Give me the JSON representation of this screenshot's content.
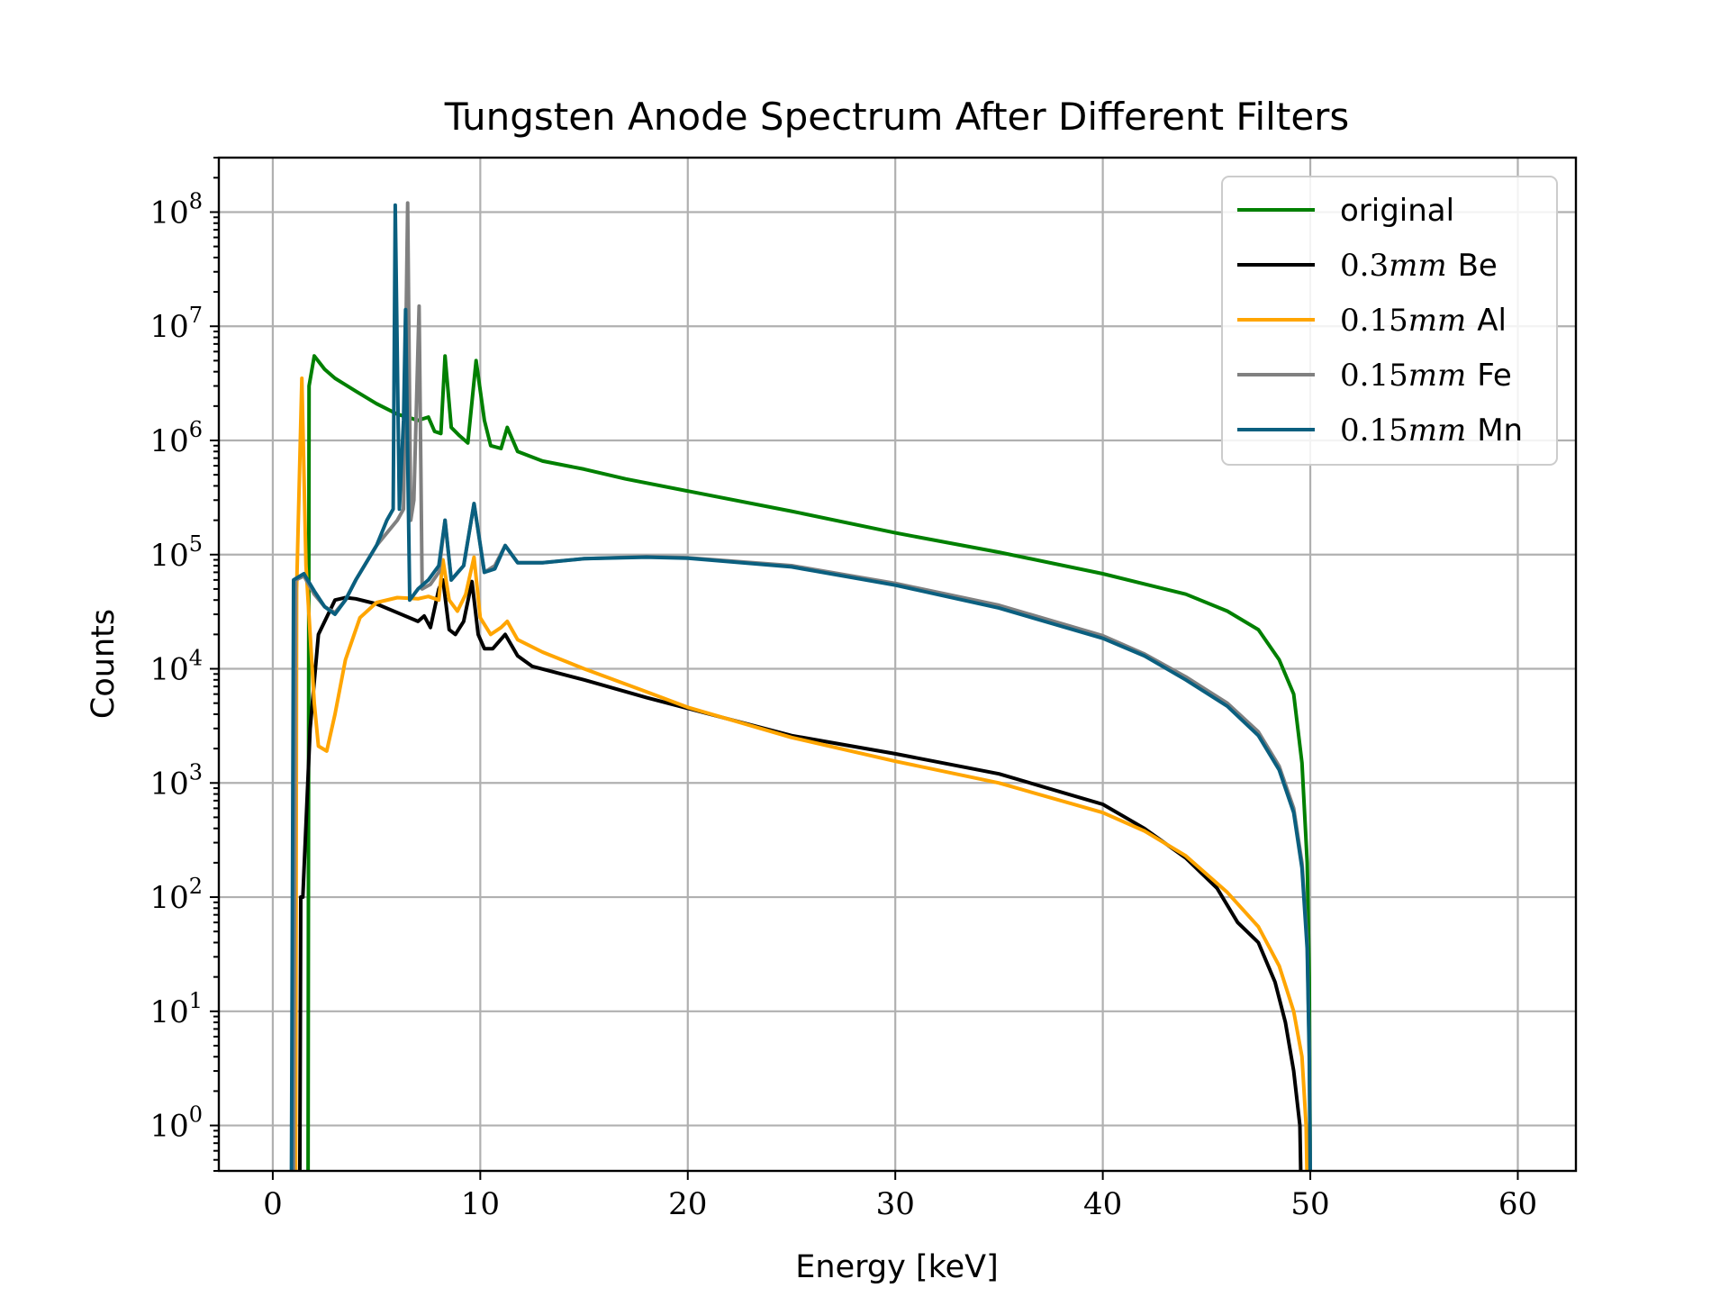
{
  "chart_data": {
    "type": "line",
    "title": "Tungsten Anode Spectrum After Different Filters",
    "xlabel": "Energy [keV]",
    "ylabel": "Counts",
    "x_scale": "linear",
    "y_scale": "log",
    "xlim": [
      -2.6,
      62.8
    ],
    "ylim": [
      0.4,
      300000000.0
    ],
    "xticks": [
      0,
      10,
      20,
      30,
      40,
      50,
      60
    ],
    "xtick_labels": [
      "0",
      "10",
      "20",
      "30",
      "40",
      "50",
      "60"
    ],
    "yticks": [
      1,
      10,
      100,
      1000,
      10000,
      100000,
      1000000,
      10000000,
      100000000
    ],
    "ytick_exponents": [
      "0",
      "1",
      "2",
      "3",
      "4",
      "5",
      "6",
      "7",
      "8"
    ],
    "ytick_base": "10",
    "grid": true,
    "legend_position": "top-right",
    "series": [
      {
        "name": "original",
        "legend_value": "",
        "legend_material": "original",
        "color": "#008000",
        "points": [
          [
            1.7,
            0.3
          ],
          [
            1.75,
            3000000.0
          ],
          [
            2.0,
            5500000.0
          ],
          [
            2.5,
            4200000.0
          ],
          [
            3,
            3500000.0
          ],
          [
            4,
            2700000.0
          ],
          [
            5,
            2100000.0
          ],
          [
            6,
            1700000.0
          ],
          [
            7,
            1500000.0
          ],
          [
            7.5,
            1600000.0
          ],
          [
            7.8,
            1200000.0
          ],
          [
            8.1,
            1150000.0
          ],
          [
            8.3,
            5500000.0
          ],
          [
            8.6,
            1300000.0
          ],
          [
            9.0,
            1100000.0
          ],
          [
            9.4,
            950000.0
          ],
          [
            9.8,
            5000000.0
          ],
          [
            10.2,
            1500000.0
          ],
          [
            10.5,
            900000.0
          ],
          [
            11.0,
            850000.0
          ],
          [
            11.3,
            1300000.0
          ],
          [
            11.8,
            800000.0
          ],
          [
            13,
            660000.0
          ],
          [
            15,
            560000.0
          ],
          [
            17,
            460000.0
          ],
          [
            20,
            360000.0
          ],
          [
            25,
            240000.0
          ],
          [
            30,
            155000.0
          ],
          [
            35,
            105000.0
          ],
          [
            40,
            68000.0
          ],
          [
            44,
            45000.0
          ],
          [
            46,
            32000.0
          ],
          [
            47.5,
            22000.0
          ],
          [
            48.5,
            12000.0
          ],
          [
            49.2,
            6000.0
          ],
          [
            49.6,
            1500.0
          ],
          [
            49.85,
            200
          ],
          [
            49.95,
            20
          ],
          [
            50.0,
            0.3
          ]
        ]
      },
      {
        "name": "0.3mm Be",
        "legend_value": "0.3",
        "legend_unit": "mm",
        "legend_material": "Be",
        "color": "#000000",
        "points": [
          [
            1.3,
            0.3
          ],
          [
            1.35,
            100
          ],
          [
            1.45,
            100
          ],
          [
            1.8,
            3000
          ],
          [
            2.2,
            20000.0
          ],
          [
            3.0,
            40000.0
          ],
          [
            3.5,
            42000.0
          ],
          [
            4,
            41000.0
          ],
          [
            5,
            37000.0
          ],
          [
            6,
            31000.0
          ],
          [
            7,
            26000.0
          ],
          [
            7.3,
            29000.0
          ],
          [
            7.6,
            23000.0
          ],
          [
            8.0,
            50000.0
          ],
          [
            8.2,
            60000.0
          ],
          [
            8.5,
            22000.0
          ],
          [
            8.8,
            20000.0
          ],
          [
            9.2,
            26000.0
          ],
          [
            9.6,
            58000.0
          ],
          [
            9.9,
            20000.0
          ],
          [
            10.2,
            15000.0
          ],
          [
            10.6,
            15000.0
          ],
          [
            11.2,
            20000.0
          ],
          [
            11.8,
            13000.0
          ],
          [
            12.5,
            10500.0
          ],
          [
            15,
            8000.0
          ],
          [
            18,
            5600.0
          ],
          [
            20,
            4500.0
          ],
          [
            25,
            2600.0
          ],
          [
            30,
            1800.0
          ],
          [
            35,
            1200.0
          ],
          [
            40,
            650
          ],
          [
            42,
            400
          ],
          [
            44,
            220
          ],
          [
            45.5,
            120
          ],
          [
            46.5,
            60
          ],
          [
            47.5,
            40
          ],
          [
            48.3,
            18
          ],
          [
            48.8,
            8
          ],
          [
            49.2,
            3
          ],
          [
            49.5,
            1
          ],
          [
            49.55,
            0.3
          ]
        ]
      },
      {
        "name": "0.15mm Al",
        "legend_value": "0.15",
        "legend_unit": "mm",
        "legend_material": "Al",
        "color": "#ffa500",
        "points": [
          [
            1.1,
            0.3
          ],
          [
            1.15,
            50000.0
          ],
          [
            1.4,
            3500000.0
          ],
          [
            1.6,
            80000.0
          ],
          [
            2.0,
            5000.0
          ],
          [
            2.2,
            2100.0
          ],
          [
            2.6,
            1900.0
          ],
          [
            3.0,
            4000.0
          ],
          [
            3.5,
            12000.0
          ],
          [
            4.2,
            28000.0
          ],
          [
            5,
            38000.0
          ],
          [
            6,
            42000.0
          ],
          [
            7,
            41000.0
          ],
          [
            7.5,
            43000.0
          ],
          [
            8.0,
            40000.0
          ],
          [
            8.2,
            90000.0
          ],
          [
            8.5,
            40000.0
          ],
          [
            8.9,
            32000.0
          ],
          [
            9.3,
            45000.0
          ],
          [
            9.7,
            95000.0
          ],
          [
            10.0,
            28000.0
          ],
          [
            10.5,
            20000.0
          ],
          [
            11.0,
            23000.0
          ],
          [
            11.3,
            26000.0
          ],
          [
            11.8,
            18000.0
          ],
          [
            13,
            14000.0
          ],
          [
            15,
            10000.0
          ],
          [
            18,
            6300.0
          ],
          [
            20,
            4600.0
          ],
          [
            25,
            2500.0
          ],
          [
            30,
            1550.0
          ],
          [
            35,
            1000.0
          ],
          [
            40,
            550
          ],
          [
            42,
            380
          ],
          [
            44,
            230
          ],
          [
            46,
            110
          ],
          [
            47.5,
            55
          ],
          [
            48.5,
            25
          ],
          [
            49.2,
            10
          ],
          [
            49.6,
            4
          ],
          [
            49.8,
            1
          ],
          [
            49.85,
            0.3
          ]
        ]
      },
      {
        "name": "0.15mm Fe",
        "legend_value": "0.15",
        "legend_unit": "mm",
        "legend_material": "Fe",
        "color": "#808080",
        "points": [
          [
            1.0,
            0.3
          ],
          [
            1.1,
            60000.0
          ],
          [
            1.5,
            65000.0
          ],
          [
            2,
            45000.0
          ],
          [
            2.5,
            35000.0
          ],
          [
            3,
            31000.0
          ],
          [
            3.5,
            40000.0
          ],
          [
            4,
            60000.0
          ],
          [
            5,
            120000.0
          ],
          [
            6,
            200000.0
          ],
          [
            6.3,
            250000.0
          ],
          [
            6.5,
            120000000.0
          ],
          [
            6.65,
            200000.0
          ],
          [
            6.8,
            300000.0
          ],
          [
            7.05,
            15000000.0
          ],
          [
            7.2,
            50000.0
          ],
          [
            7.6,
            55000.0
          ],
          [
            8.0,
            70000.0
          ],
          [
            8.3,
            200000.0
          ],
          [
            8.6,
            60000.0
          ],
          [
            9.2,
            80000.0
          ],
          [
            9.7,
            280000.0
          ],
          [
            10.2,
            70000.0
          ],
          [
            10.7,
            80000.0
          ],
          [
            11.2,
            120000.0
          ],
          [
            11.8,
            85000.0
          ],
          [
            13,
            85000.0
          ],
          [
            15,
            92000.0
          ],
          [
            18,
            96000.0
          ],
          [
            20,
            94000.0
          ],
          [
            25,
            80000.0
          ],
          [
            30,
            56000.0
          ],
          [
            35,
            36000.0
          ],
          [
            40,
            19500.0
          ],
          [
            42,
            13500.0
          ],
          [
            44,
            8500.0
          ],
          [
            46,
            5000.0
          ],
          [
            47.5,
            2800.0
          ],
          [
            48.5,
            1400.0
          ],
          [
            49.2,
            600
          ],
          [
            49.6,
            200
          ],
          [
            49.85,
            40
          ],
          [
            49.95,
            5
          ],
          [
            50.0,
            0.3
          ]
        ]
      },
      {
        "name": "0.15mm Mn",
        "legend_value": "0.15",
        "legend_unit": "mm",
        "legend_material": "Mn",
        "color": "#0a5f7f",
        "points": [
          [
            0.9,
            0.3
          ],
          [
            1.0,
            60000.0
          ],
          [
            1.5,
            68000.0
          ],
          [
            2,
            48000.0
          ],
          [
            2.5,
            35000.0
          ],
          [
            3,
            30000.0
          ],
          [
            3.5,
            40000.0
          ],
          [
            4,
            60000.0
          ],
          [
            5,
            120000.0
          ],
          [
            5.5,
            200000.0
          ],
          [
            5.8,
            250000.0
          ],
          [
            5.9,
            115000000.0
          ],
          [
            6.1,
            250000.0
          ],
          [
            6.3,
            1500000.0
          ],
          [
            6.4,
            14000000.0
          ],
          [
            6.6,
            40000.0
          ],
          [
            7.0,
            50000.0
          ],
          [
            7.5,
            60000.0
          ],
          [
            8.0,
            80000.0
          ],
          [
            8.3,
            200000.0
          ],
          [
            8.6,
            60000.0
          ],
          [
            9.2,
            80000.0
          ],
          [
            9.7,
            280000.0
          ],
          [
            10.2,
            70000.0
          ],
          [
            10.7,
            75000.0
          ],
          [
            11.2,
            120000.0
          ],
          [
            11.8,
            85000.0
          ],
          [
            13,
            85000.0
          ],
          [
            15,
            92000.0
          ],
          [
            18,
            95000.0
          ],
          [
            20,
            93000.0
          ],
          [
            25,
            78000.0
          ],
          [
            30,
            54000.0
          ],
          [
            35,
            34000.0
          ],
          [
            40,
            18500.0
          ],
          [
            42,
            13000.0
          ],
          [
            44,
            8000.0
          ],
          [
            46,
            4700.0
          ],
          [
            47.5,
            2600.0
          ],
          [
            48.5,
            1300.0
          ],
          [
            49.2,
            550
          ],
          [
            49.6,
            180
          ],
          [
            49.85,
            35
          ],
          [
            49.95,
            4
          ],
          [
            50.0,
            0.3
          ]
        ]
      }
    ]
  }
}
